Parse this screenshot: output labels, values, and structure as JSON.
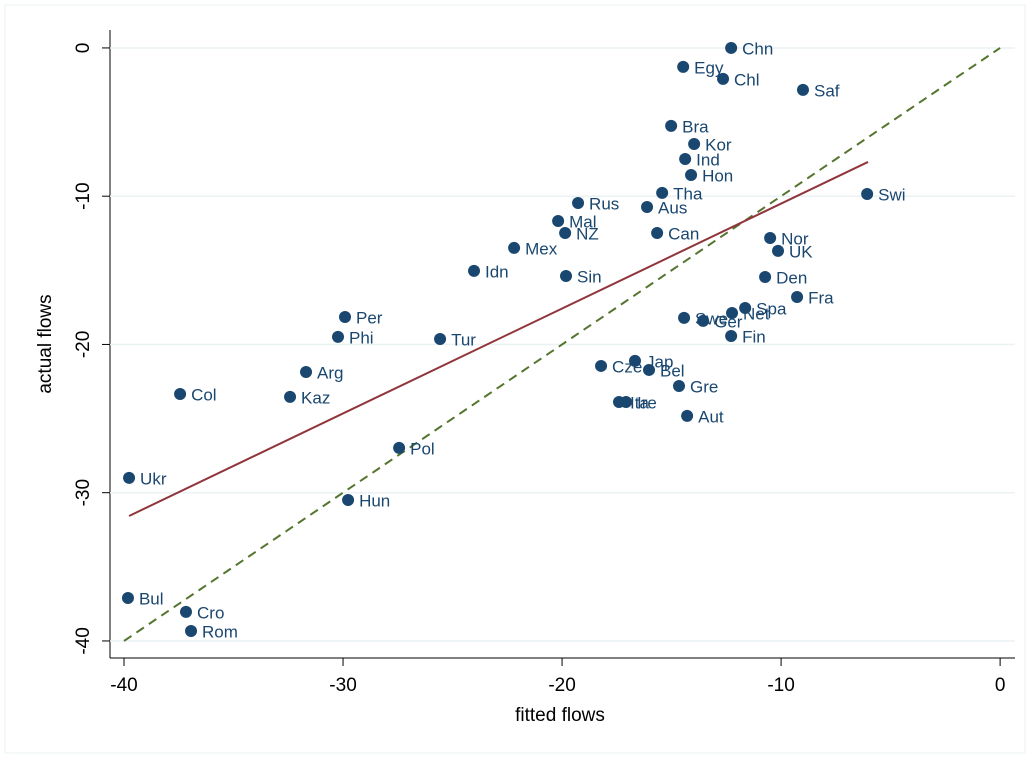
{
  "chart_data": {
    "type": "scatter",
    "xlabel": "fitted flows",
    "ylabel": "actual flows",
    "xlim": [
      -40.64,
      0.68
    ],
    "ylim": [
      -41.15,
      1.21
    ],
    "xticks": [
      -40,
      -30,
      -20,
      -10,
      0
    ],
    "yticks": [
      0,
      -10,
      -20,
      -30,
      -40
    ],
    "color": "#1a476f",
    "labels": [
      "Chn",
      "Egy",
      "Chl",
      "Saf",
      "Bra",
      "Kor",
      "Ind",
      "Hon",
      "Tha",
      "Swi",
      "Rus",
      "Aus",
      "Mal",
      "NZ",
      "Can",
      "Nor",
      "UK",
      "Mex",
      "Idn",
      "Sin",
      "Den",
      "Fra",
      "Spa",
      "Net",
      "Per",
      "Swe",
      "Ger",
      "Phi",
      "Fin",
      "Tur",
      "Jap",
      "Cze",
      "Bel",
      "Arg",
      "Gre",
      "Col",
      "Kaz",
      "Ita",
      "Ire",
      "Aut",
      "Pol",
      "Ukr",
      "Hun",
      "Bul",
      "Cro",
      "Rom"
    ],
    "x": [
      -12.28,
      -14.47,
      -12.65,
      -9.0,
      -15.02,
      -13.97,
      -14.38,
      -14.11,
      -15.43,
      -6.07,
      -19.27,
      -16.12,
      -20.18,
      -19.86,
      -15.66,
      -10.5,
      -10.14,
      -22.19,
      -24.02,
      -19.82,
      -10.73,
      -9.27,
      -11.64,
      -12.24,
      -29.91,
      -14.43,
      -13.56,
      -30.23,
      -12.28,
      -25.57,
      -16.67,
      -18.22,
      -16.03,
      -31.69,
      -14.66,
      -37.44,
      -32.42,
      -17.4,
      -17.08,
      -14.29,
      -27.44,
      -39.77,
      -29.77,
      -39.82,
      -37.17,
      -36.94
    ],
    "values": [
      0,
      -1.28,
      -2.09,
      -2.83,
      -5.26,
      -6.48,
      -7.49,
      -8.57,
      -9.78,
      -9.85,
      -10.46,
      -10.73,
      -11.67,
      -12.48,
      -12.48,
      -12.82,
      -13.69,
      -13.49,
      -15.04,
      -15.38,
      -15.45,
      -16.8,
      -17.54,
      -17.88,
      -18.15,
      -18.21,
      -18.41,
      -19.49,
      -19.43,
      -19.63,
      -21.11,
      -21.45,
      -21.72,
      -21.86,
      -22.8,
      -23.34,
      -23.54,
      -23.88,
      -23.88,
      -24.82,
      -26.98,
      -29.0,
      -30.49,
      -37.1,
      -38.04,
      -39.33
    ],
    "fit_line": {
      "color": "#90353b",
      "x": [
        -39.77,
        -6.03
      ],
      "values": [
        -31.57,
        -7.69
      ]
    },
    "reference_line": {
      "color": "#55752f",
      "x": [
        -40,
        0
      ],
      "values": [
        -40,
        0
      ]
    }
  }
}
